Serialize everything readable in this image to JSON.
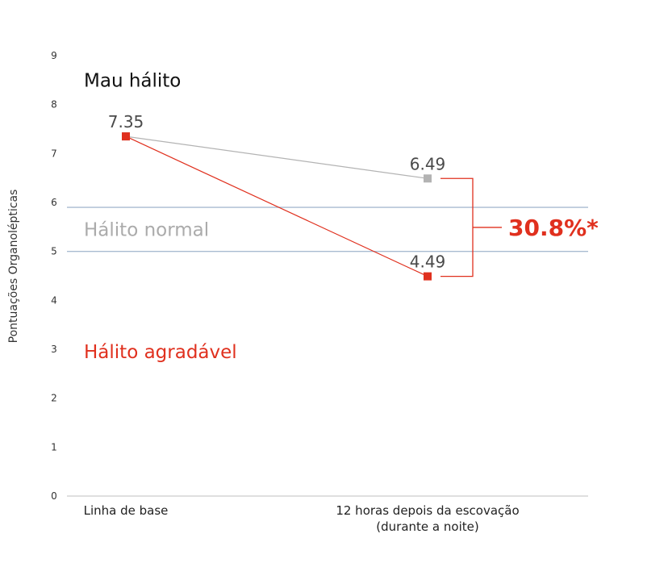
{
  "chart_data": {
    "type": "line",
    "title": "",
    "ylabel": "Pontuações Organolépticas",
    "xlabel": "",
    "categories": [
      "Linha de base",
      "12 horas depois da escovação|(durante a noite)"
    ],
    "yticks": [
      0,
      1,
      2,
      3,
      4,
      5,
      6,
      7,
      8,
      9
    ],
    "ylim": [
      0,
      9
    ],
    "grid": false,
    "series": [
      {
        "values": [
          7.35,
          6.49
        ],
        "color": "#b3b3b3",
        "labels": [
          "7.35",
          "6.49"
        ]
      },
      {
        "values": [
          7.35,
          4.49
        ],
        "color": "#e0301e",
        "labels": [
          "",
          "4.49"
        ]
      }
    ],
    "reference_lines": [
      {
        "y": 5.9,
        "color": "#a9bbd1"
      },
      {
        "y": 5.0,
        "color": "#a9bbd1"
      }
    ],
    "zones": [
      {
        "text": "Mau hálito",
        "y": 8.5,
        "color": "#111111"
      },
      {
        "text": "Hálito normal",
        "y": 5.45,
        "color": "#ababab"
      },
      {
        "text": "Hálito agradável",
        "y": 2.95,
        "color": "#e0301e"
      }
    ],
    "annotation": {
      "text": "30.8%*",
      "color": "#e0301e"
    }
  }
}
